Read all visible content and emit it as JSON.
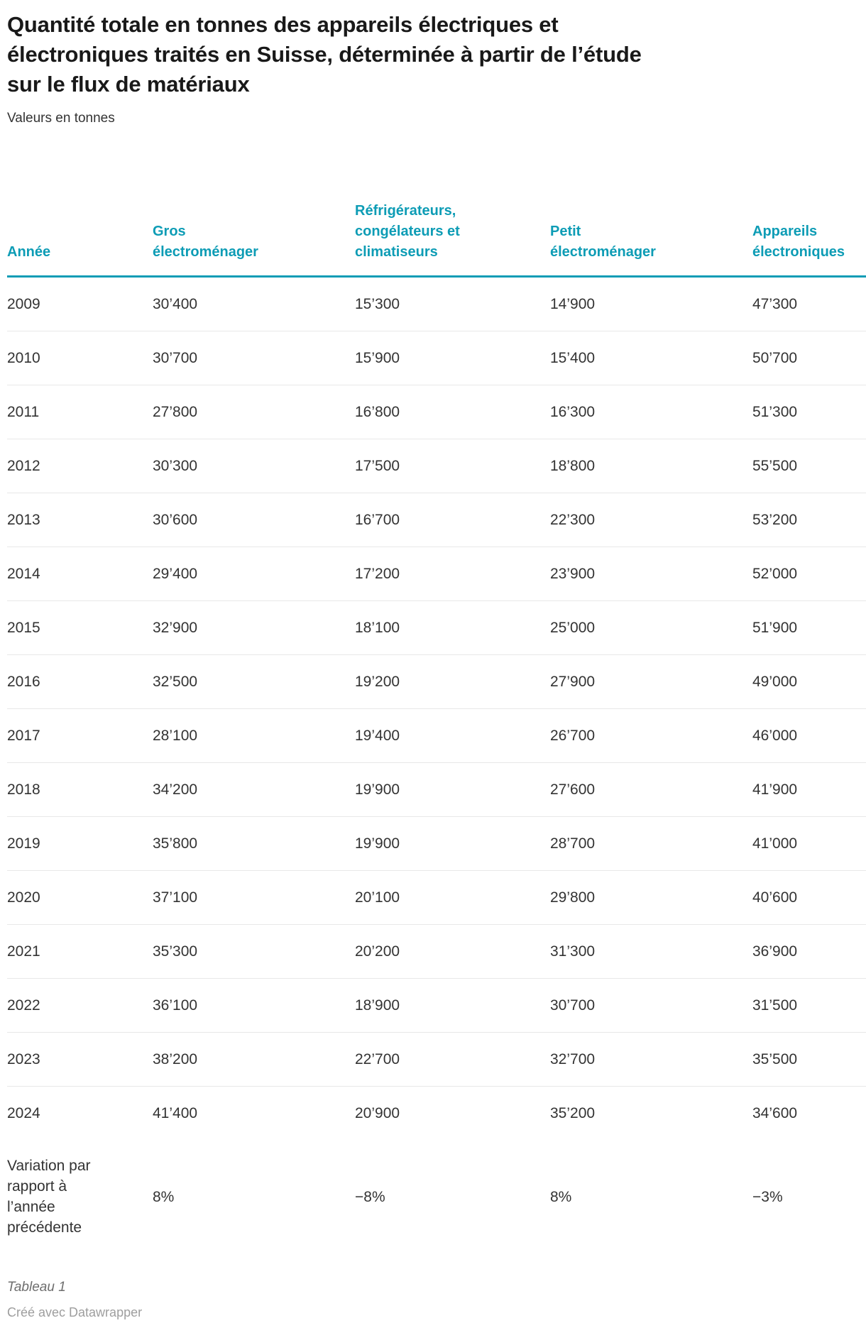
{
  "header": {
    "title": "Quantité totale en tonnes des appareils électriques et électroniques traités en Suisse, déterminée à partir de l’étude sur le flux de matériaux",
    "subtitle": "Valeurs en tonnes"
  },
  "table": {
    "columns": [
      "Année",
      "Gros électroménager",
      "Réfrigérateurs, congélateurs et climatiseurs",
      "Petit électroménager",
      "Appareils électroniques"
    ],
    "rows": [
      {
        "year": "2009",
        "values": [
          "30’400",
          "15’300",
          "14’900",
          "47’300"
        ]
      },
      {
        "year": "2010",
        "values": [
          "30’700",
          "15’900",
          "15’400",
          "50’700"
        ]
      },
      {
        "year": "2011",
        "values": [
          "27’800",
          "16’800",
          "16’300",
          "51’300"
        ]
      },
      {
        "year": "2012",
        "values": [
          "30’300",
          "17’500",
          "18’800",
          "55’500"
        ]
      },
      {
        "year": "2013",
        "values": [
          "30’600",
          "16’700",
          "22’300",
          "53’200"
        ]
      },
      {
        "year": "2014",
        "values": [
          "29’400",
          "17’200",
          "23’900",
          "52’000"
        ]
      },
      {
        "year": "2015",
        "values": [
          "32’900",
          "18’100",
          "25’000",
          "51’900"
        ]
      },
      {
        "year": "2016",
        "values": [
          "32’500",
          "19’200",
          "27’900",
          "49’000"
        ]
      },
      {
        "year": "2017",
        "values": [
          "28’100",
          "19’400",
          "26’700",
          "46’000"
        ]
      },
      {
        "year": "2018",
        "values": [
          "34’200",
          "19’900",
          "27’600",
          "41’900"
        ]
      },
      {
        "year": "2019",
        "values": [
          "35’800",
          "19’900",
          "28’700",
          "41’000"
        ]
      },
      {
        "year": "2020",
        "values": [
          "37’100",
          "20’100",
          "29’800",
          "40’600"
        ]
      },
      {
        "year": "2021",
        "values": [
          "35’300",
          "20’200",
          "31’300",
          "36’900"
        ]
      },
      {
        "year": "2022",
        "values": [
          "36’100",
          "18’900",
          "30’700",
          "31’500"
        ]
      },
      {
        "year": "2023",
        "values": [
          "38’200",
          "22’700",
          "32’700",
          "35’500"
        ]
      },
      {
        "year": "2024",
        "values": [
          "41’400",
          "20’900",
          "35’200",
          "34’600"
        ]
      }
    ],
    "variation_row": {
      "label": "Variation par rapport à l’année précédente",
      "values": [
        "8%",
        "−8%",
        "8%",
        "−3%"
      ]
    }
  },
  "footer": {
    "table_label": "Tableau 1",
    "credit": "Créé avec Datawrapper"
  },
  "colors": {
    "accent_teal": "#0d9cb5",
    "title_text": "#191919",
    "body_text": "#333333",
    "row_divider": "#e8e8e8",
    "footer_text": "#6e6e6e",
    "credit_text": "#9e9e9e"
  },
  "chart_data": {
    "type": "table",
    "title": "Quantité totale en tonnes des appareils électriques et électroniques traités en Suisse, déterminée à partir de l’étude sur le flux de matériaux",
    "subtitle": "Valeurs en tonnes",
    "unit": "tonnes",
    "columns": [
      "Année",
      "Gros électroménager",
      "Réfrigérateurs, congélateurs et climatiseurs",
      "Petit électroménager",
      "Appareils électroniques"
    ],
    "years": [
      2009,
      2010,
      2011,
      2012,
      2013,
      2014,
      2015,
      2016,
      2017,
      2018,
      2019,
      2020,
      2021,
      2022,
      2023,
      2024
    ],
    "series": [
      {
        "name": "Gros électroménager",
        "values": [
          30400,
          30700,
          27800,
          30300,
          30600,
          29400,
          32900,
          32500,
          28100,
          34200,
          35800,
          37100,
          35300,
          36100,
          38200,
          41400
        ],
        "variation_vs_previous_year": "8%"
      },
      {
        "name": "Réfrigérateurs, congélateurs et climatiseurs",
        "values": [
          15300,
          15900,
          16800,
          17500,
          16700,
          17200,
          18100,
          19200,
          19400,
          19900,
          19900,
          20100,
          20200,
          18900,
          22700,
          20900
        ],
        "variation_vs_previous_year": "−8%"
      },
      {
        "name": "Petit électroménager",
        "values": [
          14900,
          15400,
          16300,
          18800,
          22300,
          23900,
          25000,
          27900,
          26700,
          27600,
          28700,
          29800,
          31300,
          30700,
          32700,
          35200
        ],
        "variation_vs_previous_year": "8%"
      },
      {
        "name": "Appareils électroniques",
        "values": [
          47300,
          50700,
          51300,
          55500,
          53200,
          52000,
          51900,
          49000,
          46000,
          41900,
          41000,
          40600,
          36900,
          31500,
          35500,
          34600
        ],
        "variation_vs_previous_year": "−3%"
      }
    ]
  }
}
